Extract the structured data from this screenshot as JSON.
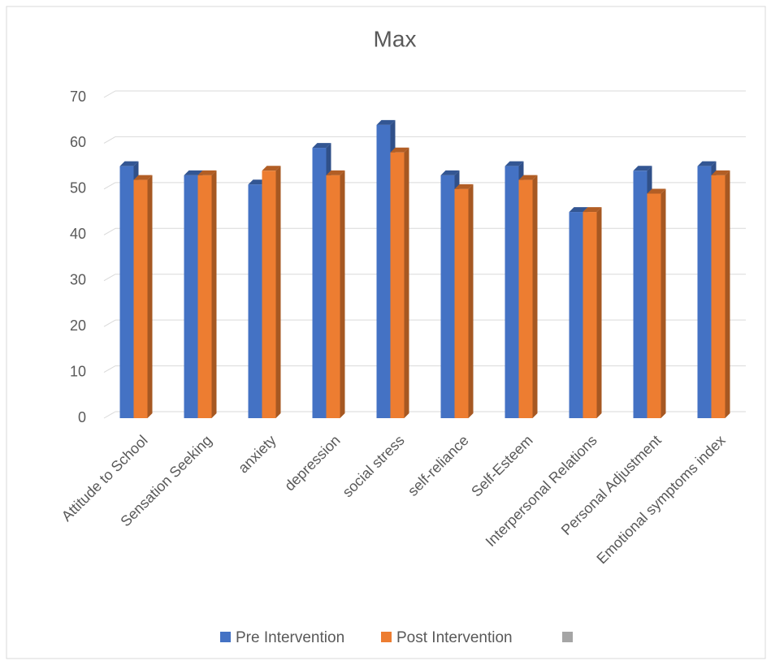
{
  "chart_data": {
    "type": "bar3d",
    "title": "Max",
    "categories": [
      "Attitude to School",
      "Sensation Seeking",
      "anxiety",
      "depression",
      "social stress",
      "self-reliance",
      "Self-Esteem",
      "Interpersonal Relations",
      "Personal Adjustment",
      "Emotional symptoms index"
    ],
    "series": [
      {
        "name": "Pre Intervention",
        "color": "#4472c4",
        "values": [
          55,
          53,
          51,
          59,
          64,
          53,
          55,
          45,
          54,
          55
        ]
      },
      {
        "name": "Post Intervention",
        "color": "#ed7d31",
        "values": [
          52,
          53,
          54,
          53,
          58,
          50,
          52,
          45,
          49,
          53
        ]
      }
    ],
    "ylim": [
      0,
      70
    ],
    "yticks": [
      0,
      10,
      20,
      30,
      40,
      50,
      60,
      70
    ],
    "grid": true
  }
}
